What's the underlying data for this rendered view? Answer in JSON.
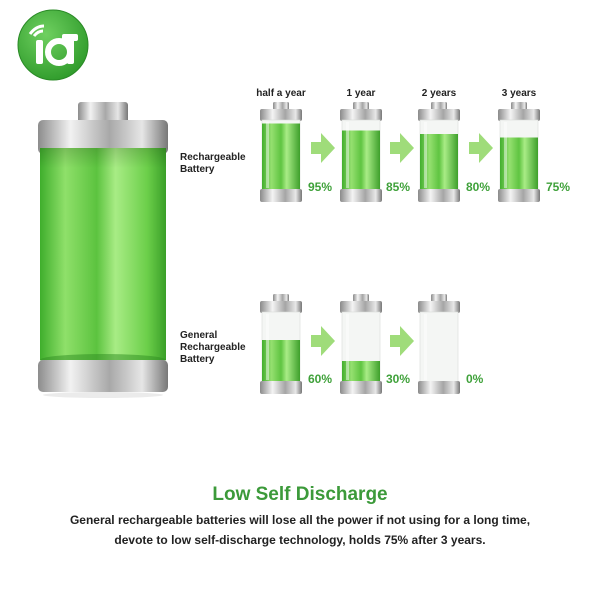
{
  "logo": {
    "icon": "iot-logo-icon"
  },
  "rows": [
    {
      "label_lines": [
        "Rechargeable",
        "Battery"
      ],
      "periods": [
        "half a year",
        "1 year",
        "2 years",
        "3 years"
      ],
      "levels": [
        95,
        85,
        80,
        75
      ],
      "percents": [
        "95%",
        "85%",
        "80%",
        "75%"
      ]
    },
    {
      "label_lines": [
        "General",
        "Rechargeable",
        "Battery"
      ],
      "levels": [
        60,
        30,
        0
      ],
      "percents": [
        "60%",
        "30%",
        "0%"
      ]
    }
  ],
  "headline": "Low Self Discharge",
  "description_lines": [
    "General rechargeable batteries will lose all the power if not using for a long time,",
    "devote to low self-discharge technology, holds 75% after 3 years."
  ],
  "colors": {
    "accent": "#3fa13a",
    "battery_green": "#7ed957",
    "logo_green": "#3dab35"
  }
}
